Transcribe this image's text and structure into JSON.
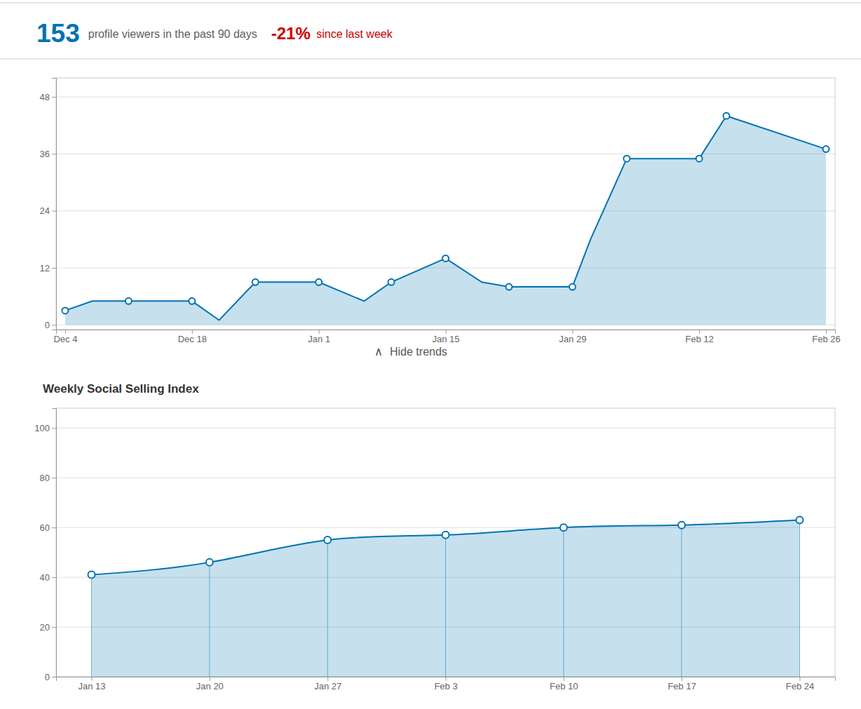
{
  "chart_data": [
    {
      "type": "area",
      "annotations": [
        {
          "text": "153",
          "color": "#0073b1"
        },
        {
          "text": "profile viewers in the past 90 days"
        },
        {
          "text": "-21%",
          "color": "#cc0000"
        },
        {
          "text": " since last week",
          "color": "#cc0000"
        },
        {
          "text": "∧"
        },
        {
          "text": "Hide trends"
        }
      ],
      "series": [
        {
          "type": "area",
          "line_style": "solid",
          "color": "#0073b1",
          "x": [
            0,
            3,
            7,
            14,
            17,
            21,
            28,
            33,
            36,
            42,
            46,
            49,
            56,
            58,
            62,
            70,
            73,
            84
          ],
          "values": [
            3,
            5,
            5,
            5,
            1,
            9,
            9,
            5,
            9,
            14,
            9,
            8,
            8,
            18,
            35,
            35,
            44,
            37
          ]
        },
        {
          "type": "scatter",
          "marker": "circle",
          "color": "#0073b1",
          "x": [
            0,
            7,
            14,
            21,
            28,
            36,
            42,
            49,
            56,
            62,
            70,
            73,
            84
          ],
          "values": [
            3,
            5,
            5,
            9,
            9,
            9,
            14,
            8,
            8,
            35,
            35,
            44,
            37
          ]
        }
      ],
      "xlim": [
        -1,
        85
      ],
      "xticks": [
        {
          "value": 0,
          "label": "Dec 4"
        },
        {
          "value": 14,
          "label": "Dec 18"
        },
        {
          "value": 28,
          "label": "Jan 1"
        },
        {
          "value": 42,
          "label": "Jan 15"
        },
        {
          "value": 56,
          "label": "Jan 29"
        },
        {
          "value": 70,
          "label": "Feb 12"
        },
        {
          "value": 84,
          "label": "Feb 26"
        }
      ],
      "ylim": [
        -1,
        52
      ],
      "yticks": [
        0,
        12,
        24,
        36,
        48
      ],
      "grid": true
    },
    {
      "type": "area",
      "title": "Weekly Social Selling Index",
      "series": [
        {
          "type": "area",
          "line_style": "smooth",
          "marker": "circle",
          "color": "#0073b1",
          "x": [
            0,
            1,
            2,
            3,
            4,
            5,
            6
          ],
          "values": [
            41,
            46,
            55,
            57,
            60,
            61,
            63
          ]
        }
      ],
      "xlim": [
        -0.3,
        6.3
      ],
      "xticks": [
        {
          "value": 0,
          "label": "Jan 13"
        },
        {
          "value": 1,
          "label": "Jan 20"
        },
        {
          "value": 2,
          "label": "Jan 27"
        },
        {
          "value": 3,
          "label": "Feb 3"
        },
        {
          "value": 4,
          "label": "Feb 10"
        },
        {
          "value": 5,
          "label": "Feb 17"
        },
        {
          "value": 6,
          "label": "Feb 24"
        }
      ],
      "ylim": [
        0,
        108
      ],
      "yticks": [
        0,
        20,
        40,
        60,
        80,
        100
      ],
      "grid": true
    }
  ]
}
